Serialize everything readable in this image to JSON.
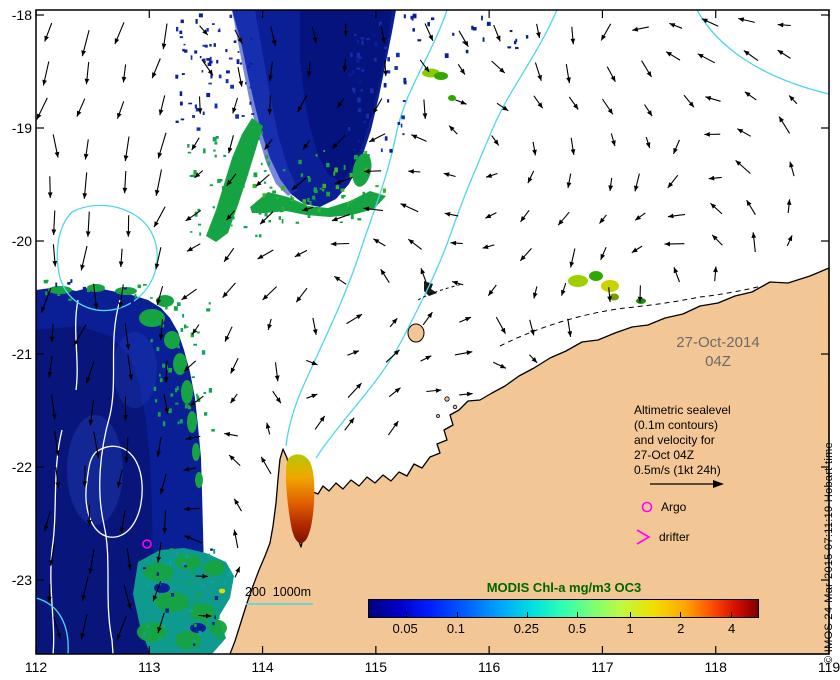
{
  "axes": {
    "x_ticks": [
      "112",
      "113",
      "114",
      "115",
      "116",
      "117",
      "118",
      "119"
    ],
    "y_ticks": [
      "-18",
      "-19",
      "-20",
      "-21",
      "-22",
      "-23"
    ]
  },
  "annotations": {
    "date": {
      "line1": "27-Oct-2014",
      "line2": "04Z"
    },
    "sealevel": {
      "lines": [
        "Altimetric sealevel",
        "(0.1m contours)",
        "and velocity for",
        "27-Oct 04Z",
        "0.5m/s (1kt 24h)"
      ]
    },
    "argo": "Argo",
    "drifter": "drifter",
    "bathy_legend": "200  1000m",
    "credit": "© IMOS 24-Mar-2015 07:11:19 Hobart time"
  },
  "colorbar": {
    "title": "MODIS Chl-a mg/m3 OC3",
    "ticks": [
      {
        "label": "0.05",
        "pct": 9.5
      },
      {
        "label": "0.1",
        "pct": 22.5
      },
      {
        "label": "0.25",
        "pct": 40.5
      },
      {
        "label": "0.5",
        "pct": 53.5
      },
      {
        "label": "1",
        "pct": 67
      },
      {
        "label": "2",
        "pct": 80
      },
      {
        "label": "4",
        "pct": 93
      }
    ],
    "colors": [
      "#000080 0%",
      "#0000c8 8%",
      "#0020ff 16%",
      "#0060ff 25%",
      "#00a0ff 33%",
      "#00e0e0 42%",
      "#30ffb0 50%",
      "#80ff70 58%",
      "#c0f840 65%",
      "#f0e000 73%",
      "#ffa800 81%",
      "#ff5000 88%",
      "#d81000 94%",
      "#800000 100%"
    ]
  },
  "style": {
    "land_color": "#F2C795",
    "ocean_color": "#FFFFFF",
    "sealevel_contour_color": "#4ED7E8",
    "vector_color": "#000000",
    "marker_color": "#FF00FF",
    "chl_deep_blue": "#0A1E96",
    "chl_green": "#16A442",
    "date_color": "#6A6A6A",
    "colorbar_title_color": "#006400"
  },
  "chart_data": {
    "type": "heatmap",
    "title": "MODIS Chl-a mg/m3 OC3",
    "x_ticks": [
      112,
      113,
      114,
      115,
      116,
      117,
      118,
      119
    ],
    "y_ticks": [
      -18,
      -19,
      -20,
      -21,
      -22,
      -23
    ],
    "colorbar_scale_mg_m3": [
      0.05,
      0.1,
      0.25,
      0.5,
      1,
      2,
      4
    ],
    "date": "27-Oct-2014 04Z",
    "overlays": [
      "Altimetric sealevel (0.1m contours) and velocity for 27-Oct 04Z 0.5m/s (1kt 24h)",
      "Argo",
      "drifter",
      "200 1000m"
    ]
  }
}
